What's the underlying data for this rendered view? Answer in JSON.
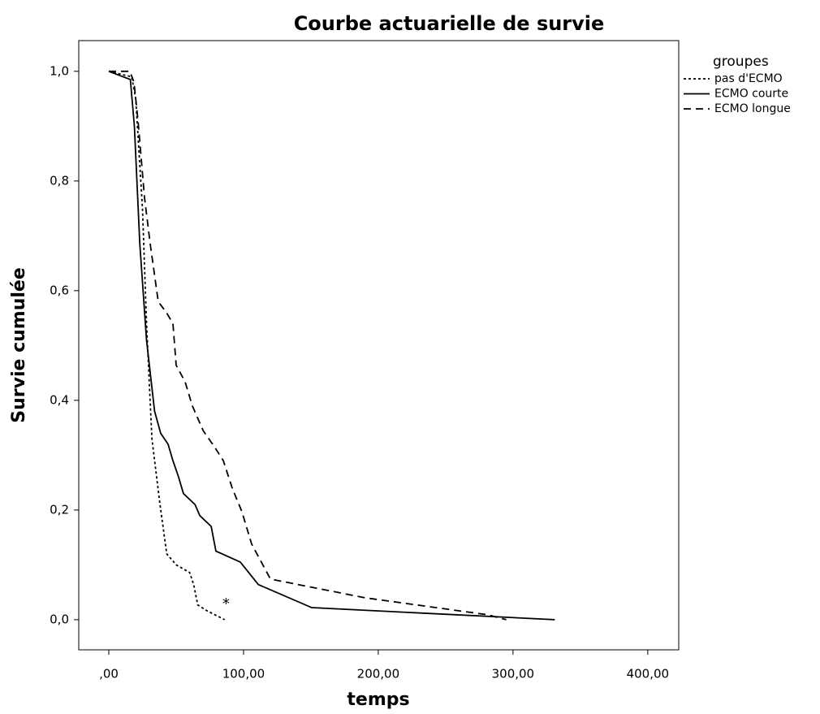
{
  "chart_data": {
    "type": "line",
    "title": "Courbe actuarielle de survie",
    "x_label": "temps",
    "y_label": "Survie cumulée",
    "legend_title": "groupes",
    "legend_position": "right",
    "xlim": [
      -22.3,
      423
    ],
    "ylim": [
      -0.055,
      1.056
    ],
    "xticks": [
      {
        "value": 0,
        "label": ",00"
      },
      {
        "value": 100,
        "label": "100,00"
      },
      {
        "value": 200,
        "label": "200,00"
      },
      {
        "value": 300,
        "label": "300,00"
      },
      {
        "value": 400,
        "label": "400,00"
      }
    ],
    "yticks": [
      {
        "value": 0,
        "label": "0,0"
      },
      {
        "value": 0.2,
        "label": "0,2"
      },
      {
        "value": 0.4,
        "label": "0,4"
      },
      {
        "value": 0.6,
        "label": "0,6"
      },
      {
        "value": 0.8,
        "label": "0,8"
      },
      {
        "value": 1,
        "label": "1,0"
      }
    ],
    "series": [
      {
        "name": "pas d'ECMO",
        "color": "#000000",
        "style": "dotted",
        "x": [
          0,
          17,
          20,
          25,
          28,
          32,
          38,
          43,
          50,
          60,
          63,
          66,
          73,
          86
        ],
        "values": [
          1,
          0.99,
          0.95,
          0.75,
          0.54,
          0.33,
          0.21,
          0.12,
          0.1,
          0.086,
          0.064,
          0.027,
          0.016,
          0
        ]
      },
      {
        "name": "ECMO courte",
        "color": "#000000",
        "style": "solid",
        "x": [
          0,
          16,
          19,
          23,
          28,
          34,
          38.5,
          44,
          47.6,
          51.8,
          55.4,
          64,
          67.5,
          76,
          79.5,
          97.6,
          111,
          150.6,
          331
        ],
        "values": [
          1,
          0.985,
          0.9,
          0.686,
          0.51,
          0.38,
          0.34,
          0.32,
          0.29,
          0.26,
          0.23,
          0.21,
          0.19,
          0.17,
          0.125,
          0.105,
          0.064,
          0.022,
          0
        ]
      },
      {
        "name": "ECMO longue",
        "color": "#000000",
        "style": "dashed",
        "x": [
          0,
          15.7,
          18.7,
          21.7,
          26.5,
          30.7,
          36.7,
          42.8,
          47.6,
          50,
          56.6,
          62,
          70,
          79,
          85,
          91.6,
          98.8,
          106,
          120,
          190,
          281,
          295
        ],
        "values": [
          1,
          1,
          0.98,
          0.91,
          0.77,
          0.686,
          0.58,
          0.56,
          0.54,
          0.464,
          0.434,
          0.39,
          0.345,
          0.313,
          0.29,
          0.24,
          0.197,
          0.138,
          0.074,
          0.04,
          0.009,
          0
        ]
      }
    ],
    "annotations": [
      {
        "text": "*",
        "x": 87,
        "y": 0.028
      }
    ]
  }
}
